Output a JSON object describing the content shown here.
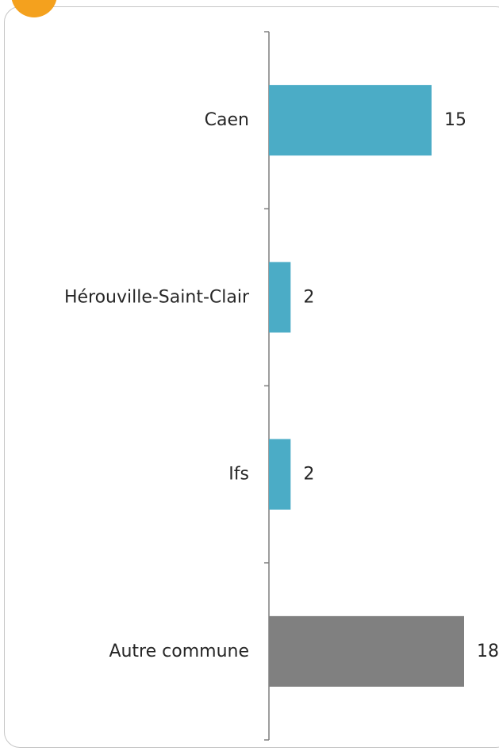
{
  "chart_data": {
    "type": "bar",
    "orientation": "horizontal",
    "categories": [
      "Caen",
      "Hérouville-Saint-Clair",
      "Ifs",
      "Autre commune"
    ],
    "values": [
      15,
      2,
      2,
      18
    ],
    "bar_colors": [
      "#4bacc6",
      "#4bacc6",
      "#4bacc6",
      "#808080"
    ],
    "data_labels": [
      "15",
      "2",
      "2",
      "18"
    ],
    "xlim": [
      0,
      18
    ],
    "grid": false,
    "legend": "none",
    "title": "",
    "xlabel": "",
    "ylabel": ""
  },
  "colors": {
    "accent": "#f4a11e",
    "frame_border": "#c6c6c6",
    "axis": "#7f7f7f",
    "text": "#262626"
  }
}
